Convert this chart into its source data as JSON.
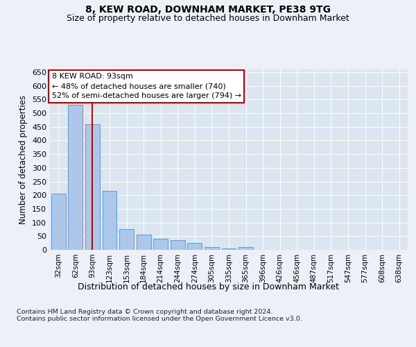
{
  "title": "8, KEW ROAD, DOWNHAM MARKET, PE38 9TG",
  "subtitle": "Size of property relative to detached houses in Downham Market",
  "xlabel": "Distribution of detached houses by size in Downham Market",
  "ylabel": "Number of detached properties",
  "categories": [
    "32sqm",
    "62sqm",
    "93sqm",
    "123sqm",
    "153sqm",
    "184sqm",
    "214sqm",
    "244sqm",
    "274sqm",
    "305sqm",
    "335sqm",
    "365sqm",
    "396sqm",
    "426sqm",
    "456sqm",
    "487sqm",
    "517sqm",
    "547sqm",
    "577sqm",
    "608sqm",
    "638sqm"
  ],
  "values": [
    205,
    530,
    460,
    215,
    75,
    55,
    40,
    35,
    25,
    10,
    5,
    10,
    1,
    0,
    0,
    1,
    0,
    0,
    1,
    0,
    1
  ],
  "bar_color": "#aec6e8",
  "bar_edgecolor": "#5b9bd5",
  "highlight_index": 2,
  "highlight_line_color": "#cc0000",
  "annotation_line1": "8 KEW ROAD: 93sqm",
  "annotation_line2": "← 48% of detached houses are smaller (740)",
  "annotation_line3": "52% of semi-detached houses are larger (794) →",
  "annotation_box_edgecolor": "#cc0000",
  "fig_background_color": "#edf1f7",
  "plot_background": "#dce6f0",
  "footer_text": "Contains HM Land Registry data © Crown copyright and database right 2024.\nContains public sector information licensed under the Open Government Licence v3.0.",
  "ylim": [
    0,
    660
  ],
  "yticks": [
    0,
    50,
    100,
    150,
    200,
    250,
    300,
    350,
    400,
    450,
    500,
    550,
    600,
    650
  ],
  "title_fontsize": 10,
  "subtitle_fontsize": 9,
  "xlabel_fontsize": 9,
  "ylabel_fontsize": 8.5
}
